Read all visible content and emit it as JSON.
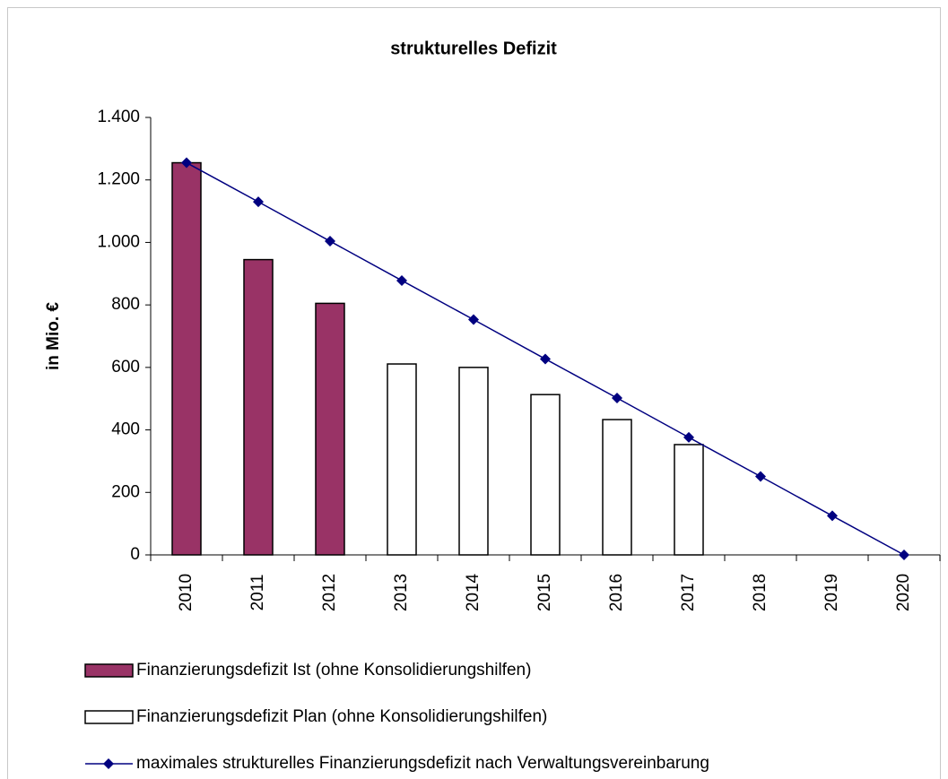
{
  "chart_data": {
    "type": "bar",
    "title": "strukturelles Defizit",
    "y_label": "in Mio. €",
    "categories": [
      "2010",
      "2011",
      "2012",
      "2013",
      "2014",
      "2015",
      "2016",
      "2017",
      "2018",
      "2019",
      "2020"
    ],
    "series": [
      {
        "name": "Finanzierungsdefizit Ist (ohne Konsolidierungshilfen)",
        "color": "#993366",
        "type": "bar",
        "values": [
          1255,
          945,
          805,
          null,
          null,
          null,
          null,
          null,
          null,
          null,
          null
        ]
      },
      {
        "name": "Finanzierungsdefizit Plan (ohne Konsolidierungshilfen)",
        "color": "#ffffff",
        "type": "bar",
        "values": [
          null,
          null,
          null,
          611,
          600,
          513,
          433,
          353,
          null,
          null,
          null
        ]
      },
      {
        "name": "maximales strukturelles Finanzierungsdefizit nach Verwaltungsvereinbarung",
        "color": "#000080",
        "type": "line",
        "values": [
          1255,
          1130,
          1004,
          878,
          753,
          627,
          502,
          376,
          251,
          125,
          0
        ]
      }
    ],
    "ylim": [
      0,
      1400
    ],
    "yticks": [
      0,
      200,
      400,
      600,
      800,
      {
        "value": 1000,
        "label": "1.000"
      },
      {
        "value": 1200,
        "label": "1.200"
      },
      {
        "value": 1400,
        "label": "1.400"
      }
    ],
    "grid": false,
    "legend": "bottom"
  }
}
